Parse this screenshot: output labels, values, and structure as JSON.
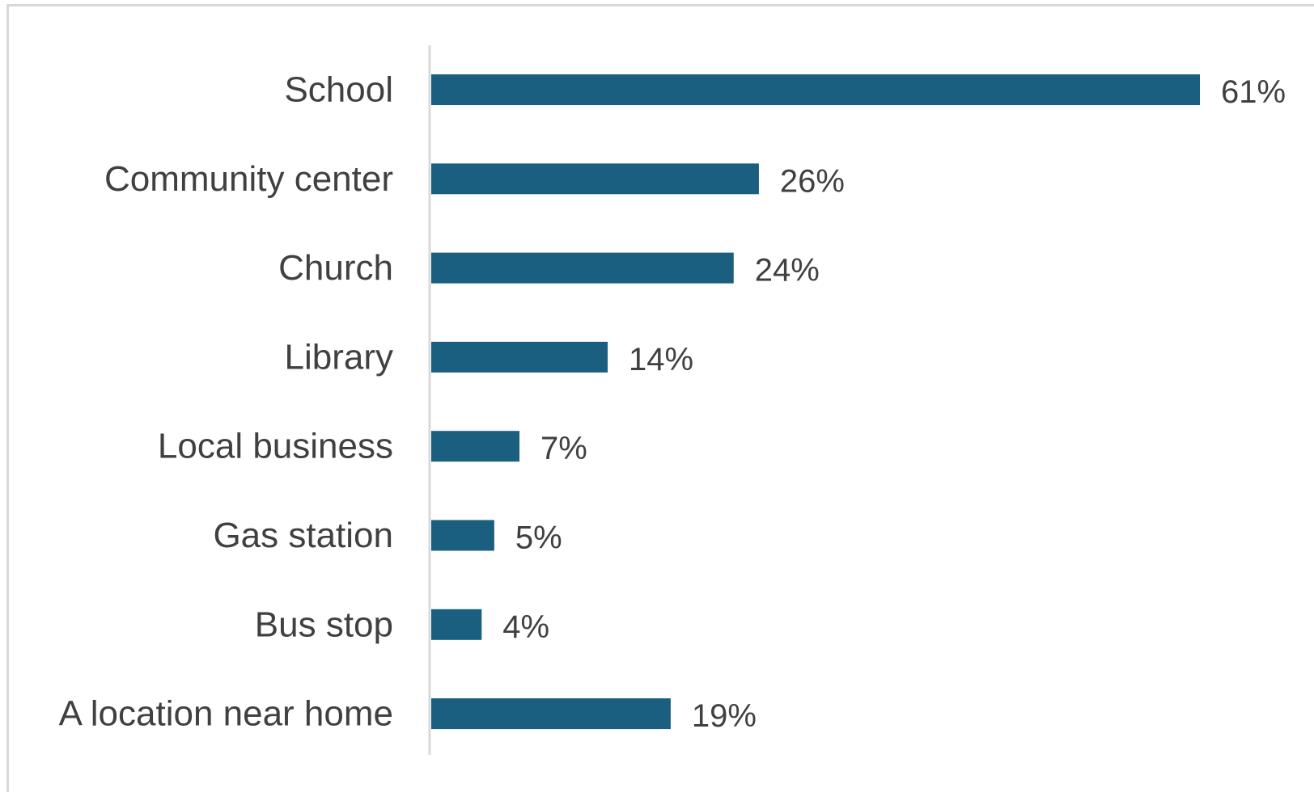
{
  "chart_data": {
    "type": "bar",
    "orientation": "horizontal",
    "categories": [
      "School",
      "Community center",
      "Church",
      "Library",
      "Local business",
      "Gas station",
      "Bus stop",
      "A location near home"
    ],
    "values": [
      61,
      26,
      24,
      14,
      7,
      5,
      4,
      19
    ],
    "value_labels": [
      "61%",
      "26%",
      "24%",
      "14%",
      "7%",
      "5%",
      "4%",
      "19%"
    ],
    "unit": "%",
    "title": "",
    "xlabel": "",
    "ylabel": "",
    "xlim": [
      0,
      61
    ],
    "grid": false,
    "legend": "none",
    "colors": {
      "bar": "#1a5f80",
      "axis": "#d9d9d9",
      "text": "#404040"
    }
  }
}
